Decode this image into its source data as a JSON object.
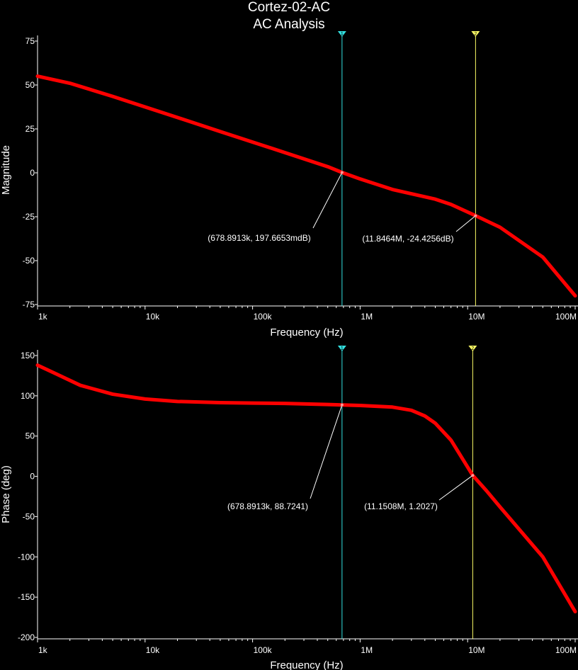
{
  "title": "Cortez-02-AC",
  "subtitle": "AC Analysis",
  "chart_data": [
    {
      "type": "line",
      "scale_x": "log",
      "xlabel": "Frequency (Hz)",
      "ylabel": "Magnitude",
      "xlim": [
        1000,
        100000000
      ],
      "ylim": [
        -75,
        75
      ],
      "x_ticks": [
        "1k",
        "10k",
        "100k",
        "1M",
        "10M",
        "100M"
      ],
      "y_ticks": [
        "75",
        "50",
        "25",
        "0",
        "-25",
        "-50",
        "-75"
      ],
      "y_tick_values": [
        75,
        50,
        25,
        0,
        -25,
        -50,
        -75
      ],
      "series_color": "#ff0000",
      "x": [
        1000,
        2000,
        5000,
        10000,
        20000,
        50000,
        100000,
        200000,
        500000,
        678891.3,
        1000000,
        2000000,
        5000000,
        7000000,
        11846400,
        20000000,
        50000000,
        100000000
      ],
      "y": [
        55,
        51,
        43.5,
        37.5,
        31.5,
        23.5,
        17.5,
        11.5,
        3.5,
        0.2,
        -3.5,
        -9.5,
        -15,
        -18,
        -24.4,
        -31,
        -48,
        -70
      ],
      "cursors": [
        {
          "marker": "1",
          "color": "#33e0e0",
          "x": 678891.3,
          "y": 0.1977,
          "label": "(678.8913k, 197.6653mdB)"
        },
        {
          "marker": "2",
          "color": "#ffff66",
          "x": 11846400,
          "y": -24.4256,
          "label": "(11.8464M, -24.4256dB)"
        }
      ]
    },
    {
      "type": "line",
      "scale_x": "log",
      "xlabel": "Frequency (Hz)",
      "ylabel": "Phase (deg)",
      "xlim": [
        1000,
        100000000
      ],
      "ylim": [
        -200,
        150
      ],
      "x_ticks": [
        "1k",
        "10k",
        "100k",
        "1M",
        "10M",
        "100M"
      ],
      "y_ticks": [
        "150",
        "100",
        "50",
        "0",
        "-50",
        "-100",
        "-150",
        "-200"
      ],
      "y_tick_values": [
        150,
        100,
        50,
        0,
        -50,
        -100,
        -150,
        -200
      ],
      "series_color": "#ff0000",
      "x": [
        1000,
        1500,
        2500,
        5000,
        10000,
        20000,
        50000,
        100000,
        200000,
        500000,
        678891.3,
        1000000,
        2000000,
        3000000,
        4000000,
        5000000,
        7000000,
        11150800,
        15000000,
        20000000,
        50000000,
        100000000
      ],
      "y": [
        138,
        127,
        113,
        102,
        96,
        93,
        91.5,
        91,
        90.5,
        89.2,
        88.7,
        88,
        86,
        82,
        75,
        66,
        45,
        1.2,
        -18,
        -38,
        -100,
        -168
      ],
      "cursors": [
        {
          "marker": "1",
          "color": "#33e0e0",
          "x": 678891.3,
          "y": 88.7241,
          "label": "(678.8913k, 88.7241)"
        },
        {
          "marker": "2",
          "color": "#ffff66",
          "x": 11150800,
          "y": 1.2027,
          "label": "(11.1508M, 1.2027)"
        }
      ]
    }
  ]
}
